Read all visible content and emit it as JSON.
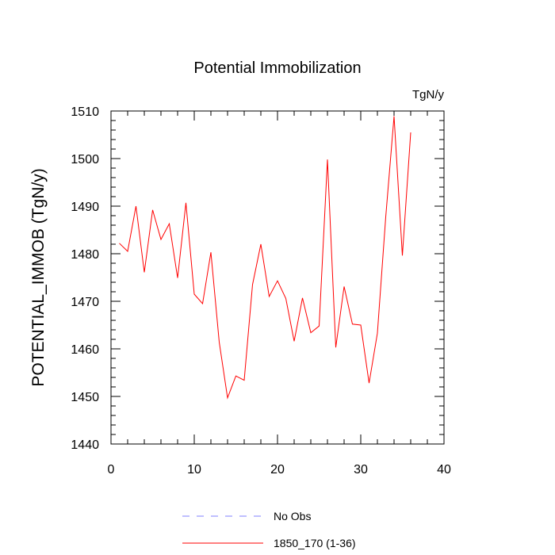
{
  "chart_data": {
    "type": "line",
    "title": "Potential Immobilization",
    "units_label": "TgN/y",
    "xlabel": "",
    "ylabel": "POTENTIAL_IMMOB  (TgN/y)",
    "xlim": [
      0,
      40
    ],
    "ylim": [
      1440,
      1510
    ],
    "x_ticks": [
      0,
      10,
      20,
      30,
      40
    ],
    "y_ticks": [
      1440,
      1450,
      1460,
      1470,
      1480,
      1490,
      1500,
      1510
    ],
    "x_tick_labels": [
      "0",
      "10",
      "20",
      "30",
      "40"
    ],
    "y_tick_labels": [
      "1440",
      "1450",
      "1460",
      "1470",
      "1480",
      "1490",
      "1500",
      "1510"
    ],
    "series": [
      {
        "name": "1850_170 (1-36)",
        "color": "#ff0000",
        "x": [
          1,
          2,
          3,
          4,
          5,
          6,
          7,
          8,
          9,
          10,
          11,
          12,
          13,
          14,
          15,
          16,
          17,
          18,
          19,
          20,
          21,
          22,
          23,
          24,
          25,
          26,
          27,
          28,
          29,
          30,
          31,
          32,
          33,
          34,
          35,
          36
        ],
        "values": [
          1482.2,
          1480.5,
          1490.0,
          1476.1,
          1489.2,
          1483.0,
          1486.3,
          1474.9,
          1490.7,
          1471.5,
          1469.5,
          1480.3,
          1461.4,
          1449.7,
          1454.3,
          1453.4,
          1473.5,
          1482.0,
          1471.0,
          1474.3,
          1470.6,
          1461.6,
          1470.7,
          1463.4,
          1464.8,
          1499.8,
          1460.3,
          1473.1,
          1465.2,
          1465.0,
          1452.8,
          1463.3,
          1487.7,
          1508.9,
          1479.6,
          1505.5
        ]
      }
    ],
    "legend": [
      {
        "label": "No Obs",
        "color": "#8080ff",
        "style": "dashed"
      },
      {
        "label": "1850_170 (1-36)",
        "color": "#ff0000",
        "style": "solid"
      }
    ],
    "legend_placement": "bottom"
  }
}
